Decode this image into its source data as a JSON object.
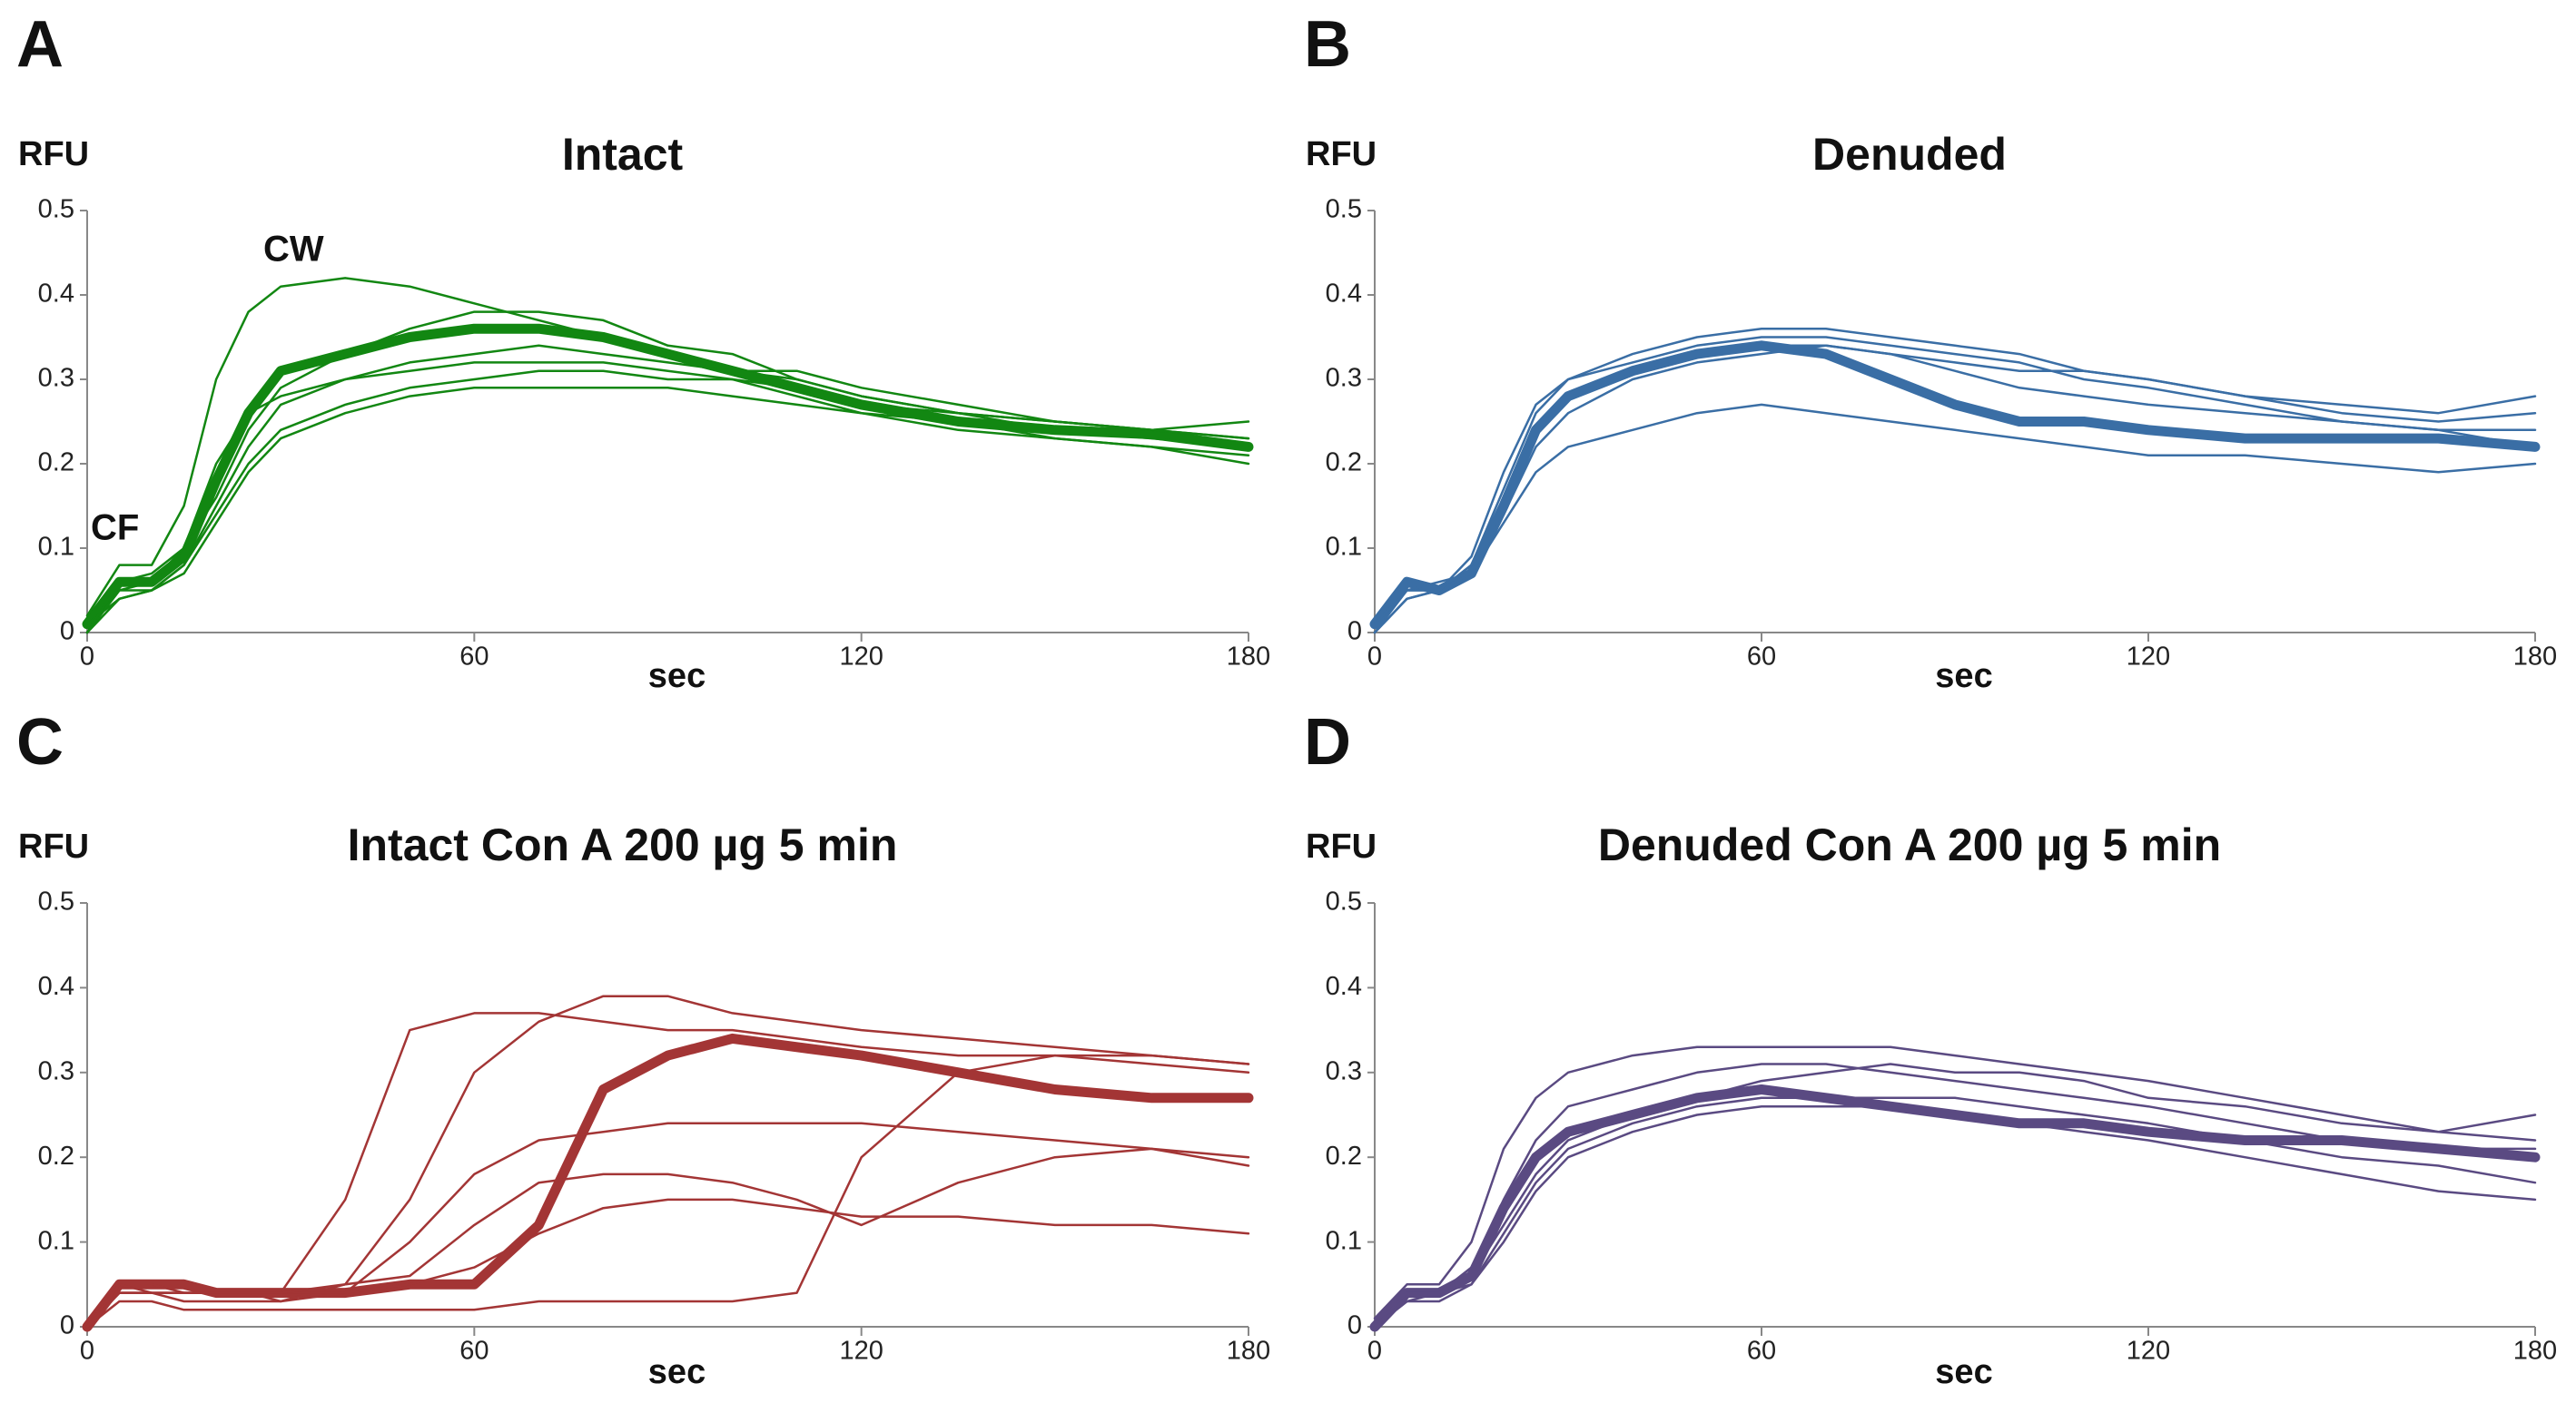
{
  "chart_data": [
    {
      "type": "line",
      "panel": "A",
      "title": "Intact",
      "ylabel": "RFU",
      "xlabel": "sec",
      "annotations": [
        "CF",
        "CW"
      ],
      "xlim": [
        0,
        180
      ],
      "ylim": [
        0,
        0.5
      ],
      "xticks": [
        0,
        60,
        120,
        180
      ],
      "yticks": [
        0,
        0.1,
        0.2,
        0.3,
        0.4,
        0.5
      ],
      "x": [
        0,
        5,
        10,
        15,
        20,
        25,
        30,
        40,
        50,
        60,
        70,
        80,
        90,
        100,
        110,
        120,
        135,
        150,
        165,
        180
      ],
      "series": [
        {
          "color": "#128712",
          "values": [
            0.01,
            0.06,
            0.06,
            0.09,
            0.18,
            0.26,
            0.31,
            0.33,
            0.35,
            0.36,
            0.36,
            0.35,
            0.33,
            0.31,
            0.29,
            0.27,
            0.25,
            0.24,
            0.235,
            0.22
          ]
        },
        {
          "color": "#128712",
          "values": [
            0.02,
            0.08,
            0.08,
            0.15,
            0.3,
            0.38,
            0.41,
            0.42,
            0.41,
            0.39,
            0.37,
            0.35,
            0.33,
            0.31,
            0.3,
            0.28,
            0.26,
            0.25,
            0.24,
            0.23
          ]
        },
        {
          "color": "#128712",
          "values": [
            0,
            0.05,
            0.05,
            0.08,
            0.14,
            0.2,
            0.24,
            0.27,
            0.29,
            0.3,
            0.31,
            0.31,
            0.3,
            0.3,
            0.29,
            0.27,
            0.26,
            0.25,
            0.24,
            0.23
          ]
        },
        {
          "color": "#128712",
          "values": [
            0.01,
            0.04,
            0.05,
            0.08,
            0.15,
            0.22,
            0.27,
            0.3,
            0.32,
            0.33,
            0.34,
            0.33,
            0.32,
            0.31,
            0.31,
            0.29,
            0.27,
            0.25,
            0.24,
            0.25
          ]
        },
        {
          "color": "#128712",
          "values": [
            0,
            0.05,
            0.06,
            0.1,
            0.2,
            0.26,
            0.28,
            0.3,
            0.31,
            0.32,
            0.32,
            0.32,
            0.31,
            0.3,
            0.28,
            0.26,
            0.24,
            0.23,
            0.22,
            0.21
          ]
        },
        {
          "color": "#128712",
          "values": [
            0,
            0.06,
            0.07,
            0.1,
            0.16,
            0.24,
            0.29,
            0.33,
            0.36,
            0.38,
            0.38,
            0.37,
            0.34,
            0.33,
            0.3,
            0.28,
            0.26,
            0.24,
            0.23,
            0.22
          ]
        },
        {
          "color": "#128712",
          "values": [
            0,
            0.04,
            0.05,
            0.07,
            0.13,
            0.19,
            0.23,
            0.26,
            0.28,
            0.29,
            0.29,
            0.29,
            0.29,
            0.28,
            0.27,
            0.26,
            0.25,
            0.23,
            0.22,
            0.2
          ]
        }
      ]
    },
    {
      "type": "line",
      "panel": "B",
      "title": "Denuded",
      "ylabel": "RFU",
      "xlabel": "sec",
      "xlim": [
        0,
        180
      ],
      "ylim": [
        0,
        0.5
      ],
      "xticks": [
        0,
        60,
        120,
        180
      ],
      "yticks": [
        0,
        0.1,
        0.2,
        0.3,
        0.4,
        0.5
      ],
      "x": [
        0,
        5,
        10,
        15,
        20,
        25,
        30,
        40,
        50,
        60,
        70,
        80,
        90,
        100,
        110,
        120,
        135,
        150,
        165,
        180
      ],
      "series": [
        {
          "color": "#3a6ea5",
          "values": [
            0.01,
            0.06,
            0.05,
            0.07,
            0.15,
            0.24,
            0.28,
            0.31,
            0.33,
            0.34,
            0.33,
            0.3,
            0.27,
            0.25,
            0.25,
            0.24,
            0.23,
            0.23,
            0.23,
            0.22
          ]
        },
        {
          "color": "#3a6ea5",
          "values": [
            0,
            0.04,
            0.05,
            0.07,
            0.13,
            0.19,
            0.22,
            0.24,
            0.26,
            0.27,
            0.26,
            0.25,
            0.24,
            0.23,
            0.22,
            0.21,
            0.21,
            0.2,
            0.19,
            0.2
          ]
        },
        {
          "color": "#3a6ea5",
          "values": [
            0.01,
            0.05,
            0.05,
            0.08,
            0.17,
            0.26,
            0.3,
            0.33,
            0.35,
            0.36,
            0.36,
            0.35,
            0.34,
            0.33,
            0.31,
            0.3,
            0.28,
            0.27,
            0.26,
            0.28
          ]
        },
        {
          "color": "#3a6ea5",
          "values": [
            0,
            0.04,
            0.05,
            0.09,
            0.19,
            0.27,
            0.3,
            0.32,
            0.34,
            0.35,
            0.35,
            0.34,
            0.33,
            0.32,
            0.3,
            0.29,
            0.27,
            0.25,
            0.24,
            0.24
          ]
        },
        {
          "color": "#3a6ea5",
          "values": [
            0,
            0.05,
            0.06,
            0.07,
            0.14,
            0.22,
            0.26,
            0.3,
            0.32,
            0.33,
            0.34,
            0.33,
            0.31,
            0.29,
            0.28,
            0.27,
            0.26,
            0.25,
            0.24,
            0.22
          ]
        },
        {
          "color": "#3a6ea5",
          "values": [
            0.01,
            0.05,
            0.05,
            0.08,
            0.16,
            0.24,
            0.28,
            0.31,
            0.33,
            0.34,
            0.34,
            0.33,
            0.32,
            0.31,
            0.31,
            0.3,
            0.28,
            0.26,
            0.25,
            0.26
          ]
        }
      ]
    },
    {
      "type": "line",
      "panel": "C",
      "title": "Intact Con A 200 µg 5 min",
      "ylabel": "RFU",
      "xlabel": "sec",
      "xlim": [
        0,
        180
      ],
      "ylim": [
        0,
        0.5
      ],
      "xticks": [
        0,
        60,
        120,
        180
      ],
      "yticks": [
        0,
        0.1,
        0.2,
        0.3,
        0.4,
        0.5
      ],
      "x": [
        0,
        5,
        10,
        15,
        20,
        25,
        30,
        40,
        50,
        60,
        70,
        80,
        90,
        100,
        110,
        120,
        135,
        150,
        165,
        180
      ],
      "series": [
        {
          "color": "#a33535",
          "values": [
            0,
            0.05,
            0.05,
            0.05,
            0.04,
            0.04,
            0.04,
            0.04,
            0.05,
            0.05,
            0.12,
            0.28,
            0.32,
            0.34,
            0.33,
            0.32,
            0.3,
            0.28,
            0.27,
            0.27
          ]
        },
        {
          "color": "#a33535",
          "values": [
            0,
            0.05,
            0.05,
            0.04,
            0.04,
            0.04,
            0.04,
            0.15,
            0.35,
            0.37,
            0.37,
            0.36,
            0.35,
            0.35,
            0.34,
            0.33,
            0.32,
            0.32,
            0.31,
            0.3
          ]
        },
        {
          "color": "#a33535",
          "values": [
            0,
            0.04,
            0.04,
            0.04,
            0.04,
            0.04,
            0.03,
            0.05,
            0.15,
            0.3,
            0.36,
            0.39,
            0.39,
            0.37,
            0.36,
            0.35,
            0.34,
            0.33,
            0.32,
            0.31
          ]
        },
        {
          "color": "#a33535",
          "values": [
            0,
            0.04,
            0.04,
            0.03,
            0.03,
            0.03,
            0.03,
            0.04,
            0.1,
            0.18,
            0.22,
            0.23,
            0.24,
            0.24,
            0.24,
            0.24,
            0.23,
            0.22,
            0.21,
            0.2
          ]
        },
        {
          "color": "#a33535",
          "values": [
            0,
            0.05,
            0.04,
            0.04,
            0.04,
            0.04,
            0.04,
            0.04,
            0.05,
            0.07,
            0.11,
            0.14,
            0.15,
            0.15,
            0.14,
            0.13,
            0.13,
            0.12,
            0.12,
            0.11
          ]
        },
        {
          "color": "#a33535",
          "values": [
            0,
            0.03,
            0.03,
            0.02,
            0.02,
            0.02,
            0.02,
            0.02,
            0.02,
            0.02,
            0.03,
            0.03,
            0.03,
            0.03,
            0.04,
            0.2,
            0.3,
            0.32,
            0.32,
            0.31
          ]
        },
        {
          "color": "#a33535",
          "values": [
            0,
            0.04,
            0.04,
            0.04,
            0.04,
            0.04,
            0.04,
            0.05,
            0.06,
            0.12,
            0.17,
            0.18,
            0.18,
            0.17,
            0.15,
            0.12,
            0.17,
            0.2,
            0.21,
            0.19
          ]
        }
      ]
    },
    {
      "type": "line",
      "panel": "D",
      "title": "Denuded Con A 200 µg 5 min",
      "ylabel": "RFU",
      "xlabel": "sec",
      "xlim": [
        0,
        180
      ],
      "ylim": [
        0,
        0.5
      ],
      "xticks": [
        0,
        60,
        120,
        180
      ],
      "yticks": [
        0,
        0.1,
        0.2,
        0.3,
        0.4,
        0.5
      ],
      "x": [
        0,
        5,
        10,
        15,
        20,
        25,
        30,
        40,
        50,
        60,
        70,
        80,
        90,
        100,
        110,
        120,
        135,
        150,
        165,
        180
      ],
      "series": [
        {
          "color": "#5a4a82",
          "values": [
            0,
            0.04,
            0.04,
            0.06,
            0.14,
            0.2,
            0.23,
            0.25,
            0.27,
            0.28,
            0.27,
            0.26,
            0.25,
            0.24,
            0.24,
            0.23,
            0.22,
            0.22,
            0.21,
            0.2
          ]
        },
        {
          "color": "#5a4a82",
          "values": [
            0.01,
            0.05,
            0.05,
            0.1,
            0.21,
            0.27,
            0.3,
            0.32,
            0.33,
            0.33,
            0.33,
            0.33,
            0.32,
            0.31,
            0.3,
            0.29,
            0.27,
            0.25,
            0.23,
            0.22
          ]
        },
        {
          "color": "#5a4a82",
          "values": [
            0,
            0.03,
            0.04,
            0.05,
            0.1,
            0.16,
            0.2,
            0.23,
            0.25,
            0.26,
            0.26,
            0.26,
            0.25,
            0.24,
            0.23,
            0.22,
            0.2,
            0.18,
            0.16,
            0.15
          ]
        },
        {
          "color": "#5a4a82",
          "values": [
            0,
            0.04,
            0.04,
            0.07,
            0.15,
            0.22,
            0.26,
            0.28,
            0.3,
            0.31,
            0.31,
            0.3,
            0.29,
            0.28,
            0.27,
            0.26,
            0.24,
            0.22,
            0.21,
            0.21
          ]
        },
        {
          "color": "#5a4a82",
          "values": [
            0,
            0.04,
            0.04,
            0.06,
            0.12,
            0.18,
            0.22,
            0.25,
            0.27,
            0.29,
            0.3,
            0.31,
            0.3,
            0.3,
            0.29,
            0.27,
            0.26,
            0.24,
            0.23,
            0.25
          ]
        },
        {
          "color": "#5a4a82",
          "values": [
            0,
            0.03,
            0.03,
            0.05,
            0.11,
            0.17,
            0.21,
            0.24,
            0.26,
            0.27,
            0.27,
            0.27,
            0.27,
            0.26,
            0.25,
            0.24,
            0.22,
            0.2,
            0.19,
            0.17
          ]
        }
      ]
    }
  ]
}
